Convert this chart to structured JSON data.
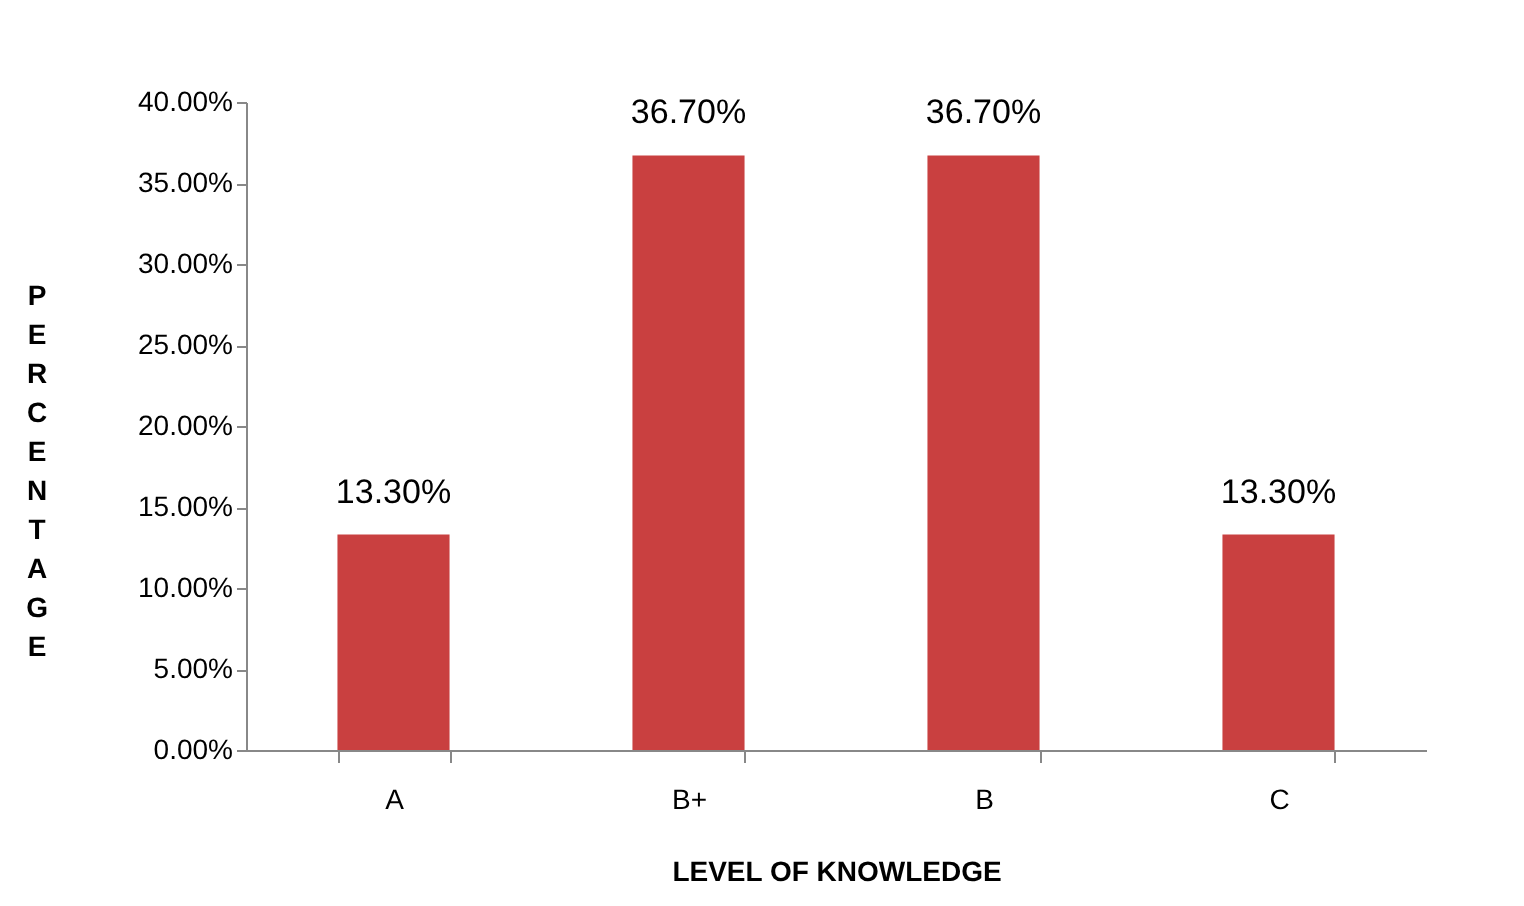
{
  "chart_data": {
    "type": "bar",
    "xlabel": "LEVEL OF KNOWLEDGE",
    "ylabel": "PERCENTAGE",
    "categories": [
      "A",
      "B+",
      "B",
      "C"
    ],
    "values": [
      13.3,
      36.7,
      36.7,
      13.3
    ],
    "value_labels": [
      "13.30%",
      "36.70%",
      "36.70%",
      "13.30%"
    ],
    "color": "#c94040",
    "ylim": [
      0,
      40
    ],
    "yticks": [
      {
        "value": 0,
        "label": "0.00%"
      },
      {
        "value": 5,
        "label": "5.00%"
      },
      {
        "value": 10,
        "label": "10.00%"
      },
      {
        "value": 15,
        "label": "15.00%"
      },
      {
        "value": 20,
        "label": "20.00%"
      },
      {
        "value": 25,
        "label": "25.00%"
      },
      {
        "value": 30,
        "label": "30.00%"
      },
      {
        "value": 35,
        "label": "35.00%"
      },
      {
        "value": 40,
        "label": "40.00%"
      }
    ],
    "grid": false
  }
}
